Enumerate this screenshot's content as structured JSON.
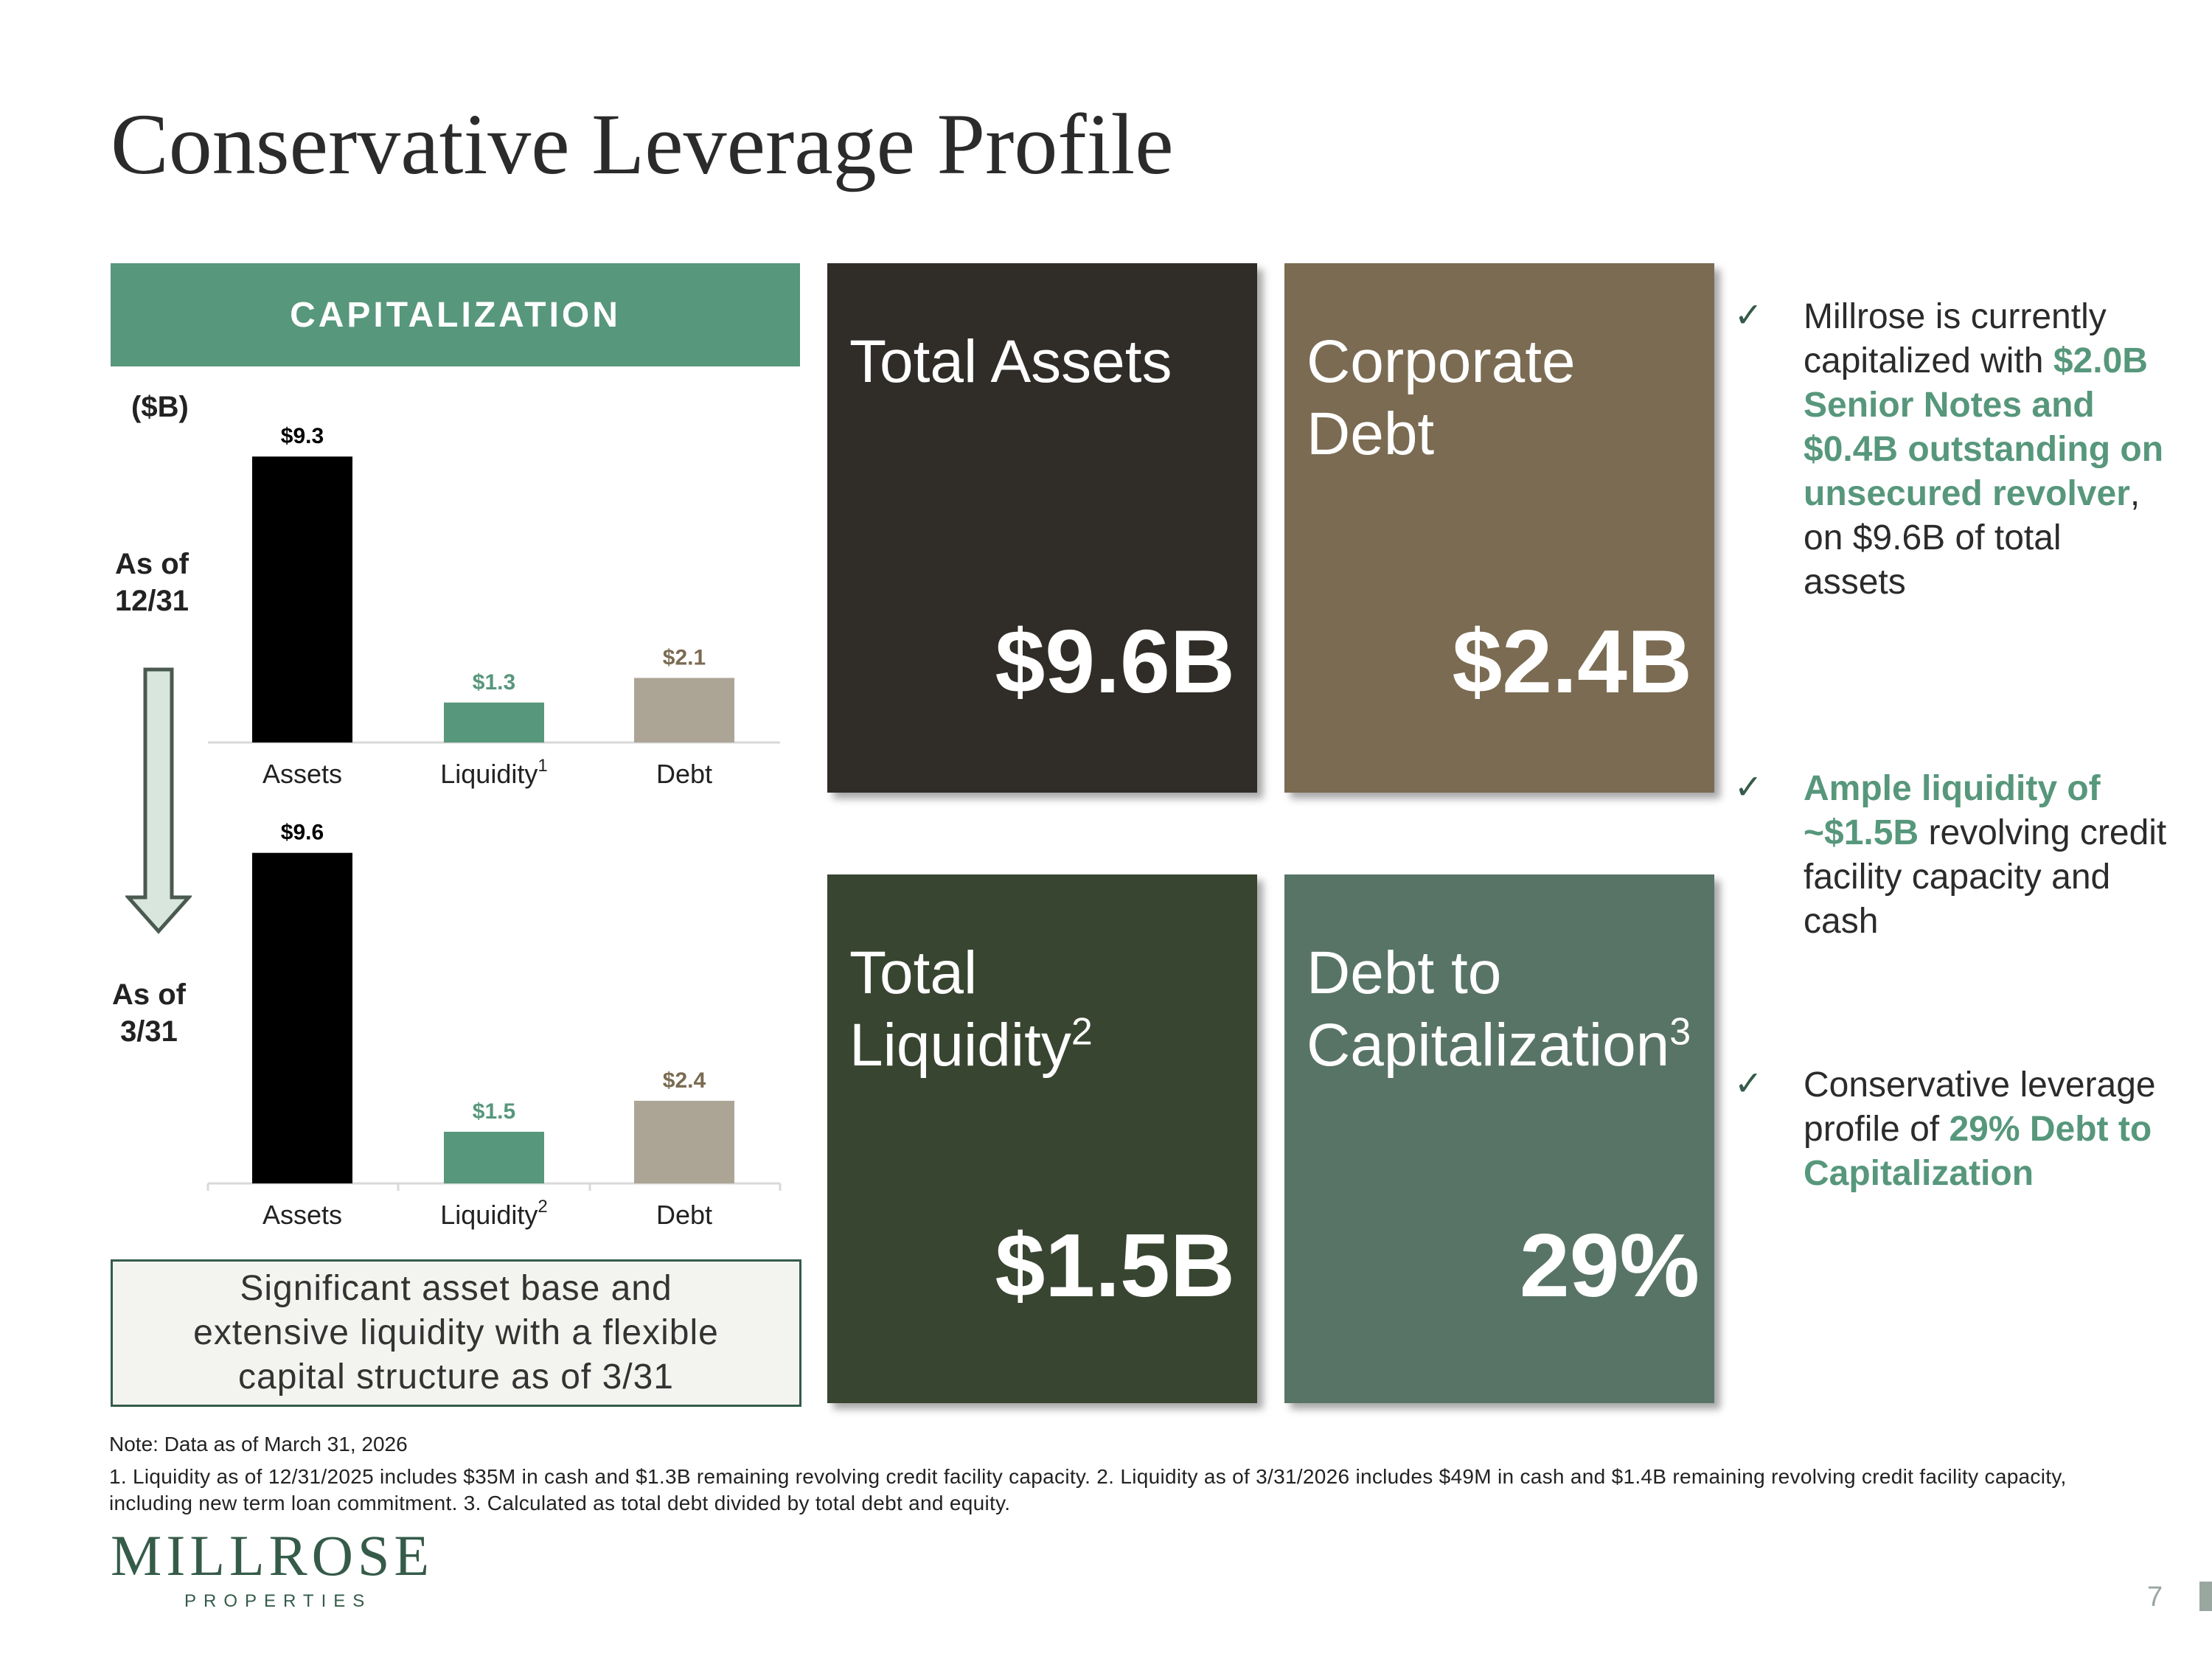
{
  "title": "Conservative Leverage Profile",
  "capitalization": {
    "header": "CAPITALIZATION",
    "unit": "($B)",
    "period_1": "As of 12/31",
    "period_2": "As of 3/31"
  },
  "chart_data": [
    {
      "type": "bar",
      "categories": [
        "Assets",
        "Liquidity",
        "Debt"
      ],
      "category_superscripts": [
        "",
        "1",
        ""
      ],
      "values": [
        9.3,
        1.3,
        2.1
      ],
      "value_labels": [
        "$9.3",
        "$1.3",
        "$2.1"
      ],
      "bar_colors": [
        "#000000",
        "#57977c",
        "#aca596"
      ],
      "label_colors": [
        "#000000",
        "#57977c",
        "#7a6b52"
      ],
      "ylabel": "($B)",
      "period": "As of 12/31"
    },
    {
      "type": "bar",
      "categories": [
        "Assets",
        "Liquidity",
        "Debt"
      ],
      "category_superscripts": [
        "",
        "2",
        ""
      ],
      "values": [
        9.6,
        1.5,
        2.4
      ],
      "value_labels": [
        "$9.6",
        "$1.5",
        "$2.4"
      ],
      "bar_colors": [
        "#000000",
        "#57977c",
        "#aca596"
      ],
      "label_colors": [
        "#000000",
        "#57977c",
        "#7a6b52"
      ],
      "ylabel": "($B)",
      "period": "As of 3/31"
    }
  ],
  "tiles": [
    {
      "label": "Total Assets",
      "sup": "",
      "value": "$9.6B",
      "color": "#302d28"
    },
    {
      "label": "Corporate Debt",
      "sup": "",
      "value": "$2.4B",
      "color": "#7a6b52"
    },
    {
      "label": "Total Liquidity",
      "sup": "2",
      "value": "$1.5B",
      "color": "#384530"
    },
    {
      "label": "Debt to Capitalization",
      "sup": "3",
      "value": "29%",
      "color": "#587467"
    }
  ],
  "bullets": {
    "b1": {
      "pre": "Millrose is currently capitalized with ",
      "highlight": "$2.0B Senior Notes and $0.4B outstanding on unsecured revolver",
      "post": ", on $9.6B of total assets"
    },
    "b2": {
      "highlight": "Ample liquidity of ~$1.5B",
      "post": " revolving credit facility capacity and cash"
    },
    "b3": {
      "pre": "Conservative leverage profile of ",
      "highlight": "29% Debt to Capitalization"
    }
  },
  "summary": "Significant asset base and extensive liquidity with a flexible capital structure as of 3/31",
  "note": "Note: Data as of March 31, 2026",
  "footnotes": " 1. Liquidity as of 12/31/2025 includes $35M in cash and $1.3B remaining revolving credit facility capacity. 2.  Liquidity as of 3/31/2026 includes $49M in cash and $1.4B remaining revolving credit facility capacity, including new term loan commitment. 3. Calculated as total debt divided by total debt and equity.",
  "logo": {
    "name": "MILLROSE",
    "sub": "PROPERTIES"
  },
  "page_number": "7",
  "accent_color": "#57977c"
}
